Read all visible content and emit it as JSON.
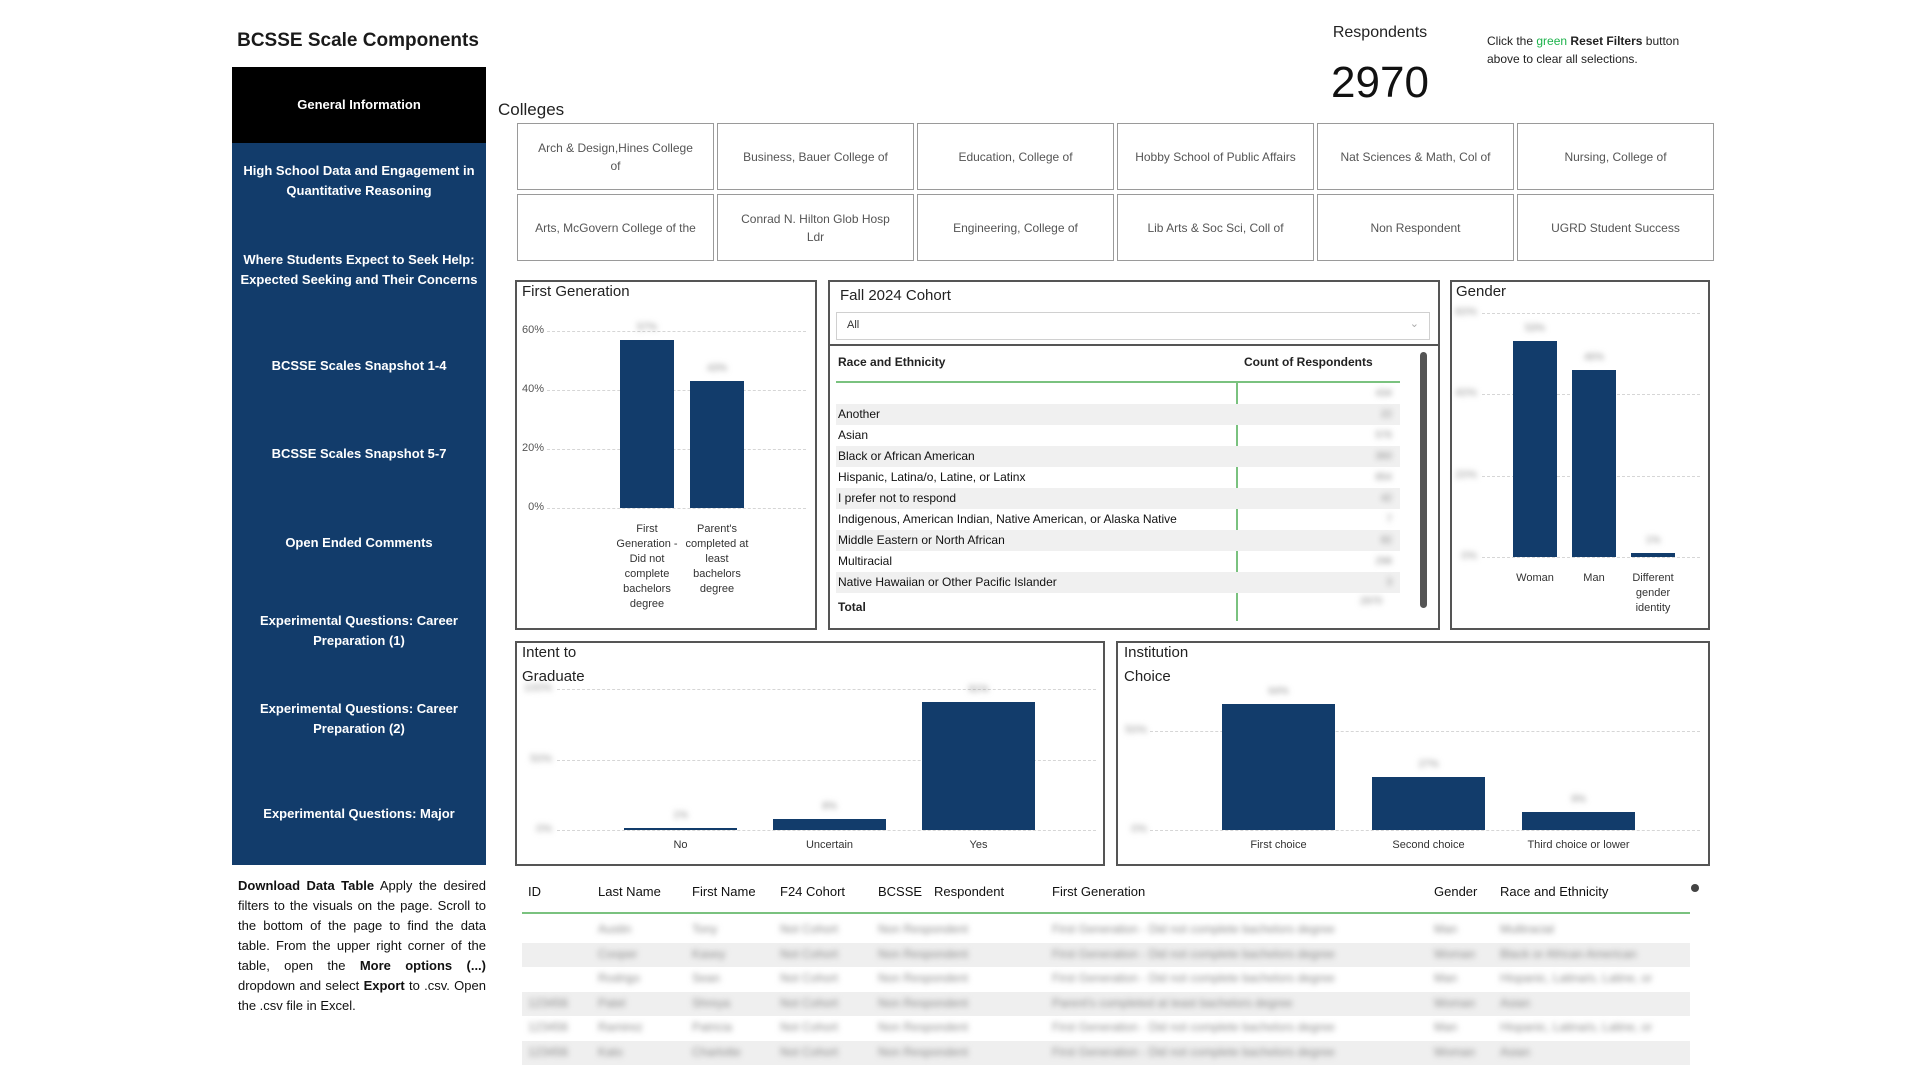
{
  "page_title": "BCSSE Scale Components",
  "nav": {
    "items": [
      {
        "label": "General Information",
        "active": true
      },
      {
        "label": "High School Data and Engagement in Quantitative Reasoning",
        "active": false
      },
      {
        "label": "Where Students Expect to Seek Help: Expected Seeking and Their Concerns",
        "active": false
      },
      {
        "label": "BCSSE Scales Snapshot 1-4",
        "active": false
      },
      {
        "label": "BCSSE Scales Snapshot 5-7",
        "active": false
      },
      {
        "label": "Open Ended Comments",
        "active": false
      },
      {
        "label": "Experimental Questions: Career Preparation (1)",
        "active": false
      },
      {
        "label": "Experimental Questions: Career Preparation (2)",
        "active": false
      },
      {
        "label": "Experimental Questions: Major",
        "active": false
      }
    ]
  },
  "download_instructions": {
    "part1": "Download Data Table",
    "part2": " Apply the desired filters to the visuals on the page. Scroll to the bottom of the page to find the data table. From the upper right corner of the table, open the ",
    "part3": "More options (...)",
    "part4": " dropdown and select ",
    "part5": "Export",
    "part6": " to .csv. Open the .csv file in Excel."
  },
  "respondents": {
    "label": "Respondents",
    "value": "2970"
  },
  "reset_note": {
    "part1": "Click the ",
    "green_word": "green",
    "accent_color": "#1bb24a",
    "bold_part": " Reset Filters",
    "part2": " button above to clear all selections."
  },
  "colleges": {
    "label": "Colleges",
    "items": [
      "Arch & Design,Hines College of",
      "Business, Bauer College of",
      "Education, College of",
      "Hobby School of Public Affairs",
      "Nat Sciences & Math, Col of",
      "Nursing, College of",
      "Arts, McGovern College of the",
      "Conrad N. Hilton Glob Hosp Ldr",
      "Engineering, College of",
      "Lib Arts & Soc Sci, Coll of",
      "Non Respondent",
      "UGRD Student Success"
    ]
  },
  "first_generation": {
    "title": "First Generation",
    "y_ticks": [
      "60%",
      "40%",
      "20%",
      "0%"
    ],
    "data_labels": [
      "57%",
      "43%"
    ],
    "categories": [
      "First Generation - Did not complete bachelors degree",
      "Parent's completed at least bachelors degree"
    ]
  },
  "cohort": {
    "title": "Fall 2024 Cohort",
    "dropdown_value": "All",
    "dropdown_icon": "chevron-down-icon",
    "table_header_name": "Race and Ethnicity",
    "table_header_count": "Count of Respondents",
    "rows": [
      {
        "name": "",
        "count": "434"
      },
      {
        "name": "Another",
        "count": "22"
      },
      {
        "name": "Asian",
        "count": "576"
      },
      {
        "name": "Black or African American",
        "count": "360"
      },
      {
        "name": "Hispanic, Latina/o, Latine, or Latinx",
        "count": "854"
      },
      {
        "name": "I prefer not to respond",
        "count": "42"
      },
      {
        "name": "Indigenous, American Indian, Native American, or Alaska Native",
        "count": "7"
      },
      {
        "name": "Middle Eastern or North African",
        "count": "82"
      },
      {
        "name": "Multiracial",
        "count": "298"
      },
      {
        "name": "Native Hawaiian or Other Pacific Islander",
        "count": "3"
      }
    ],
    "total_label": "Total",
    "total_count": "2970"
  },
  "gender": {
    "title": "Gender",
    "y_ticks": [
      "60%",
      "40%",
      "20%",
      "0%"
    ],
    "data_labels": [
      "53%",
      "46%",
      "1%"
    ],
    "categories": [
      "Woman",
      "Man",
      "Different gender identity"
    ]
  },
  "intent": {
    "title_line1": "Intent to",
    "title_line2": "Graduate",
    "y_ticks": [
      "100%",
      "50%",
      "0%"
    ],
    "data_labels": [
      "1%",
      "8%",
      "91%"
    ],
    "categories": [
      "No",
      "Uncertain",
      "Yes"
    ]
  },
  "institution": {
    "title_line1": "Institution",
    "title_line2": "Choice",
    "y_ticks": [
      "50%",
      "0%"
    ],
    "data_labels": [
      "64%",
      "27%",
      "9%"
    ],
    "categories": [
      "First choice",
      "Second choice",
      "Third choice or lower"
    ]
  },
  "chart_data": [
    {
      "type": "bar",
      "title": "First Generation",
      "categories": [
        "First Generation - Did not complete bachelors degree",
        "Parent's completed at least bachelors degree"
      ],
      "values": [
        57,
        43
      ],
      "ylim": [
        0,
        60
      ]
    },
    {
      "type": "bar",
      "title": "Gender",
      "categories": [
        "Woman",
        "Man",
        "Different gender identity"
      ],
      "values": [
        53,
        46,
        1
      ],
      "ylim": [
        0,
        60
      ]
    },
    {
      "type": "bar",
      "title": "Intent to Graduate",
      "categories": [
        "No",
        "Uncertain",
        "Yes"
      ],
      "values": [
        1,
        8,
        91
      ],
      "ylim": [
        0,
        100
      ]
    },
    {
      "type": "bar",
      "title": "Institution Choice",
      "categories": [
        "First choice",
        "Second choice",
        "Third choice or lower"
      ],
      "values": [
        64,
        27,
        9
      ],
      "ylim": [
        0,
        80
      ]
    }
  ],
  "data_table": {
    "more_options_icon": "more-options-dot-icon",
    "headers": [
      "ID",
      "Last Name",
      "First Name",
      "F24 Cohort",
      "BCSSE",
      "Respondent",
      "First Generation",
      "Gender",
      "Race and Ethnicity"
    ],
    "rows": [
      [
        "",
        "Austin",
        "Tony",
        "Not Cohort",
        "Non Respondent",
        "First Generation - Did not complete bachelors degree",
        "Man",
        "Multiracial"
      ],
      [
        "",
        "Cooper",
        "Kasey",
        "Not Cohort",
        "Non Respondent",
        "First Generation - Did not complete bachelors degree",
        "Woman",
        "Black or African American"
      ],
      [
        "",
        "Rodrigo",
        "Sean",
        "Not Cohort",
        "Non Respondent",
        "First Generation - Did not complete bachelors degree",
        "Man",
        "Hispanic, Latina/o, Latine, or"
      ],
      [
        "123456",
        "Patel",
        "Shreya",
        "Not Cohort",
        "Non Respondent",
        "Parent's completed at least bachelors degree",
        "Woman",
        "Asian"
      ],
      [
        "123456",
        "Ramirez",
        "Patricia",
        "Not Cohort",
        "Non Respondent",
        "First Generation - Did not complete bachelors degree",
        "Man",
        "Hispanic, Latina/o, Latine, or"
      ],
      [
        "123456",
        "Kato",
        "Charlotte",
        "Not Cohort",
        "Non Respondent",
        "First Generation - Did not complete bachelors degree",
        "Woman",
        "Asian"
      ]
    ]
  }
}
